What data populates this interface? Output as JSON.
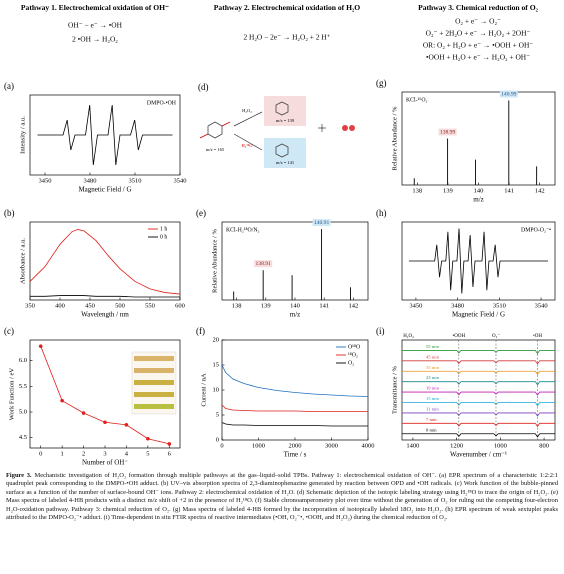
{
  "pathways": [
    {
      "title": "Pathway 1. Electrochemical oxidation of OH⁻",
      "equations": [
        "OH⁻ − e⁻ → •OH",
        "2 •OH → H₂O₂"
      ]
    },
    {
      "title": "Pathway 2. Electrochemical oxidation of H₂O",
      "equations": [
        "2 H₂O − 2e⁻ → H₂O₂ + 2 H⁺"
      ]
    },
    {
      "title": "Pathway 3. Chemical reduction of O₂",
      "equations": [
        "O₂ + e⁻ → O₂⁻",
        "O₂⁻ + 2H₂O + e⁻ → H₂O₂ + 2OH⁻",
        "OR: O₂ + H₂O + e⁻ → •OOH + OH⁻",
        "•OOH + H₂O + e⁻ → H₂O₂ + OH⁻"
      ]
    }
  ],
  "diagram": {
    "label": "(d)",
    "reagents": [
      "H₂O₂",
      "H₂¹⁸O"
    ],
    "masses": [
      "m/z = 165",
      "m/z = 139",
      "m/z = 141"
    ]
  },
  "chart_data": [
    {
      "type": "line",
      "label": "(a)",
      "annotation": "DMPO-•OH",
      "x_label": "Magnetic Field / G",
      "y_label": "Intensity / a.u.",
      "xlim": [
        3440,
        3540
      ],
      "xticks": [
        3450,
        3480,
        3510,
        3540
      ],
      "ylim": [
        -1.2,
        1.2
      ],
      "x": [
        3445,
        3462,
        3464.8,
        3467.2,
        3470,
        3477,
        3479.8,
        3482.2,
        3485,
        3492,
        3494.8,
        3497.2,
        3500,
        3507,
        3509.8,
        3512.2,
        3515,
        3535
      ],
      "series": [
        {
          "color": "#000000",
          "values": [
            0,
            0,
            0.45,
            -0.45,
            0,
            0,
            0.9,
            -0.9,
            0,
            0,
            0.9,
            -0.9,
            0,
            0,
            0.45,
            -0.45,
            0,
            0
          ]
        }
      ]
    },
    {
      "type": "line",
      "label": "(b)",
      "x_label": "Wavelength / nm",
      "y_label": "Absorbance / a.u.",
      "legend": "upper right",
      "xlim": [
        350,
        600
      ],
      "xticks": [
        350,
        400,
        450,
        500,
        550,
        600
      ],
      "ylim": [
        0,
        1.05
      ],
      "x": [
        350,
        375,
        400,
        420,
        430,
        440,
        460,
        480,
        500,
        525,
        550,
        575,
        600
      ],
      "series": [
        {
          "name": "1 h",
          "color": "#e0201b",
          "values": [
            0.25,
            0.45,
            0.75,
            0.92,
            0.95,
            0.93,
            0.8,
            0.6,
            0.42,
            0.25,
            0.15,
            0.1,
            0.08
          ]
        },
        {
          "name": "0 h",
          "color": "#000000",
          "values": [
            0.05,
            0.05,
            0.06,
            0.06,
            0.06,
            0.06,
            0.05,
            0.05,
            0.05,
            0.04,
            0.04,
            0.04,
            0.04
          ]
        }
      ]
    },
    {
      "type": "line",
      "markers": true,
      "label": "(c)",
      "x_label": "Number of OH⁻",
      "y_label": "Work Function / eV",
      "xlim": [
        -0.5,
        6.5
      ],
      "xticks": [
        0,
        1,
        2,
        3,
        4,
        5,
        6
      ],
      "ylim": [
        4.3,
        6.4
      ],
      "yticks": [
        4.5,
        {
          "value": 5,
          "label": "5.0"
        },
        5.5,
        {
          "value": 6,
          "label": "6.0"
        }
      ],
      "x": [
        0,
        1,
        2,
        3,
        4,
        5,
        6
      ],
      "series": [
        {
          "color": "#e0201b",
          "values": [
            6.28,
            5.22,
            4.98,
            4.8,
            4.75,
            4.48,
            4.38
          ]
        }
      ]
    },
    {
      "type": "stem",
      "label": "(e)",
      "annotation": "KCl-H₂¹⁸O/N₂",
      "x_label": "m/z",
      "y_label": "Relative Abundance / %",
      "xlim": [
        137.5,
        142.5
      ],
      "xticks": [
        138,
        139,
        140,
        141,
        142
      ],
      "ylim": [
        0,
        110
      ],
      "x": [
        137.9,
        138.91,
        139.9,
        140.91,
        141.9
      ],
      "peak_labels": [
        138.91,
        140.91
      ],
      "series": [
        {
          "color": "#000000",
          "values": [
            12,
            42,
            35,
            100,
            18
          ]
        }
      ]
    },
    {
      "type": "line",
      "label": "(f)",
      "x_label": "Time / s",
      "y_label": "Current / nA",
      "legend": "upper right",
      "xlim": [
        0,
        4000
      ],
      "xticks": [
        0,
        1000,
        2000,
        3000,
        4000
      ],
      "ylim": [
        0,
        20
      ],
      "yticks": [
        0,
        5,
        10,
        15,
        20
      ],
      "x": [
        0,
        100,
        300,
        600,
        1000,
        1500,
        2000,
        2500,
        3000,
        3500,
        4000
      ],
      "series": [
        {
          "name": "O¹⁸O",
          "color": "#1f6fc0",
          "values": [
            15,
            13.5,
            12.2,
            11.3,
            10.5,
            9.9,
            9.5,
            9.2,
            9,
            8.8,
            8.7
          ]
        },
        {
          "name": "¹⁸O₂",
          "color": "#e0201b",
          "values": [
            7,
            6.3,
            6,
            5.9,
            5.8,
            5.8,
            5.8,
            5.7,
            5.7,
            5.7,
            5.7
          ]
        },
        {
          "name": "O₂",
          "color": "#000000",
          "values": [
            3.5,
            3.2,
            3,
            3,
            2.9,
            2.9,
            2.9,
            2.9,
            2.8,
            2.8,
            2.8
          ]
        }
      ]
    },
    {
      "type": "stem",
      "label": "(g)",
      "annotation": "KCl-¹⁶O₂",
      "x_label": "m/z",
      "y_label": "Relative Abundance / %",
      "xlim": [
        137.5,
        142.5
      ],
      "xticks": [
        138,
        139,
        140,
        141,
        142
      ],
      "ylim": [
        0,
        110
      ],
      "x": [
        137.9,
        138.99,
        139.9,
        140.99,
        141.9
      ],
      "peak_labels": [
        138.99,
        140.99
      ],
      "series": [
        {
          "color": "#000000",
          "values": [
            8,
            55,
            30,
            100,
            22
          ]
        }
      ]
    },
    {
      "type": "line",
      "label": "(h)",
      "annotation": "DMPO-O₂⁻•",
      "x_label": "Magnetic Field / G",
      "xlim": [
        3440,
        3550
      ],
      "xticks": [
        3450,
        3480,
        3510,
        3540
      ],
      "ylim": [
        -1.2,
        1.2
      ],
      "x": [
        3445,
        3463.5,
        3465,
        3467,
        3468.5,
        3471.5,
        3473,
        3475,
        3476.5,
        3479.5,
        3481,
        3483,
        3484.5,
        3487.5,
        3489,
        3491,
        3492.5,
        3497.5,
        3499,
        3501,
        3502.5,
        3505.5,
        3507,
        3509,
        3510.5,
        3545
      ],
      "series": [
        {
          "color": "#000000",
          "values": [
            0,
            0,
            0.5,
            -0.5,
            0,
            0,
            0.9,
            -0.9,
            0,
            0,
            1,
            -1,
            0,
            0,
            0.8,
            -0.8,
            0,
            0,
            0.9,
            -0.9,
            0,
            0,
            0.5,
            -0.5,
            0,
            0
          ]
        }
      ]
    },
    {
      "type": "line",
      "label": "(i)",
      "x_label": "Wavenumber / cm⁻¹",
      "y_label": "Transmittance / %",
      "legend": "inline",
      "xlim": [
        1450,
        750
      ],
      "xticks": [
        1400,
        1200,
        1000,
        800
      ],
      "ylim": [
        0,
        9.6
      ],
      "annotations": [
        {
          "text": "H₂O₂",
          "x": 1420
        },
        {
          "text": "•OOH",
          "x": 1190
        },
        {
          "text": "O₂⁻",
          "x": 1020
        },
        {
          "text": "•OH",
          "x": 830
        }
      ],
      "x": [
        1450,
        1200,
        1190,
        1180,
        1030,
        1020,
        1010,
        840,
        830,
        820,
        750
      ],
      "series": [
        {
          "name": "0 min",
          "color": "#000000",
          "values": [
            0.6,
            0.6,
            0.35,
            0.6,
            0.6,
            0.4,
            0.6,
            0.6,
            0.3,
            0.6,
            0.6
          ]
        },
        {
          "name": "7 min",
          "color": "#e0201b",
          "values": [
            1.6,
            1.6,
            1.35,
            1.6,
            1.6,
            1.4,
            1.6,
            1.6,
            1.3,
            1.6,
            1.6
          ]
        },
        {
          "name": "11 min",
          "color": "#7b3fbf",
          "values": [
            2.6,
            2.6,
            2.35,
            2.6,
            2.6,
            2.4,
            2.6,
            2.6,
            2.3,
            2.6,
            2.6
          ]
        },
        {
          "name": "15 min",
          "color": "#16a8d8",
          "values": [
            3.6,
            3.6,
            3.35,
            3.6,
            3.6,
            3.4,
            3.6,
            3.6,
            3.3,
            3.6,
            3.6
          ]
        },
        {
          "name": "19 min",
          "color": "#c21bb5",
          "values": [
            4.6,
            4.6,
            4.35,
            4.6,
            4.6,
            4.4,
            4.6,
            4.6,
            4.3,
            4.6,
            4.6
          ]
        },
        {
          "name": "23 min",
          "color": "#178a8a",
          "values": [
            5.6,
            5.6,
            5.35,
            5.6,
            5.6,
            5.4,
            5.6,
            5.6,
            5.3,
            5.6,
            5.6
          ]
        },
        {
          "name": "35 min",
          "color": "#e8901a",
          "values": [
            6.6,
            6.6,
            6.35,
            6.6,
            6.6,
            6.4,
            6.6,
            6.6,
            6.3,
            6.6,
            6.6
          ]
        },
        {
          "name": "45 min",
          "color": "#d23b3b",
          "values": [
            7.6,
            7.6,
            7.35,
            7.6,
            7.6,
            7.4,
            7.6,
            7.6,
            7.3,
            7.6,
            7.6
          ]
        },
        {
          "name": "55 min",
          "color": "#2a9a3a",
          "values": [
            8.6,
            8.6,
            8.35,
            8.6,
            8.6,
            8.4,
            8.6,
            8.6,
            8.3,
            8.6,
            8.6
          ]
        }
      ]
    }
  ],
  "caption": {
    "label": "Figure 3.",
    "text": "Mechanistic investigation of H₂O₂ formation through multiple pathways at the gas–liquid–solid TPBs. Pathway 1: electrochemical oxidation of OH⁻. (a) EPR spectrum of a characteristic 1:2:2:1 quadruplet peak corresponding to the DMPO-•OH adduct. (b) UV–vis absorption spectra of 2,3-diaminophenazine generated by reaction between OPD and •OH radicals. (c) Work function of the bubble-pinned surface as a function of the number of surface-bound OH⁻ ions. Pathway 2: electrochemical oxidation of H₂O. (d) Schematic depiction of the isotopic labeling strategy using H₂¹⁸O to trace the origin of H₂O₂. (e) Mass spectra of labeled 4-HB products with a distinct m/z shift of +2 in the presence of H₂¹⁸O. (f) Stable chronoamperometry plot over time without the generation of O₂ for ruling out the competing four-electron H₂O-oxidation pathway. Pathway 3: chemical reduction of O₂. (g) Mass spectra of labeled 4-HB formed by the incorporation of isotopically labeled 18O₂ into H₂O₂. (h) EPR spectrum of weak sextuplet peaks attributed to the DMPO-O₂⁻• adduct. (i) Time-dependent in situ FTIR spectra of reactive intermediates (•OH, O₂⁻•, •OOH, and H₂O₂) during the chemical reduction of O₂."
  }
}
